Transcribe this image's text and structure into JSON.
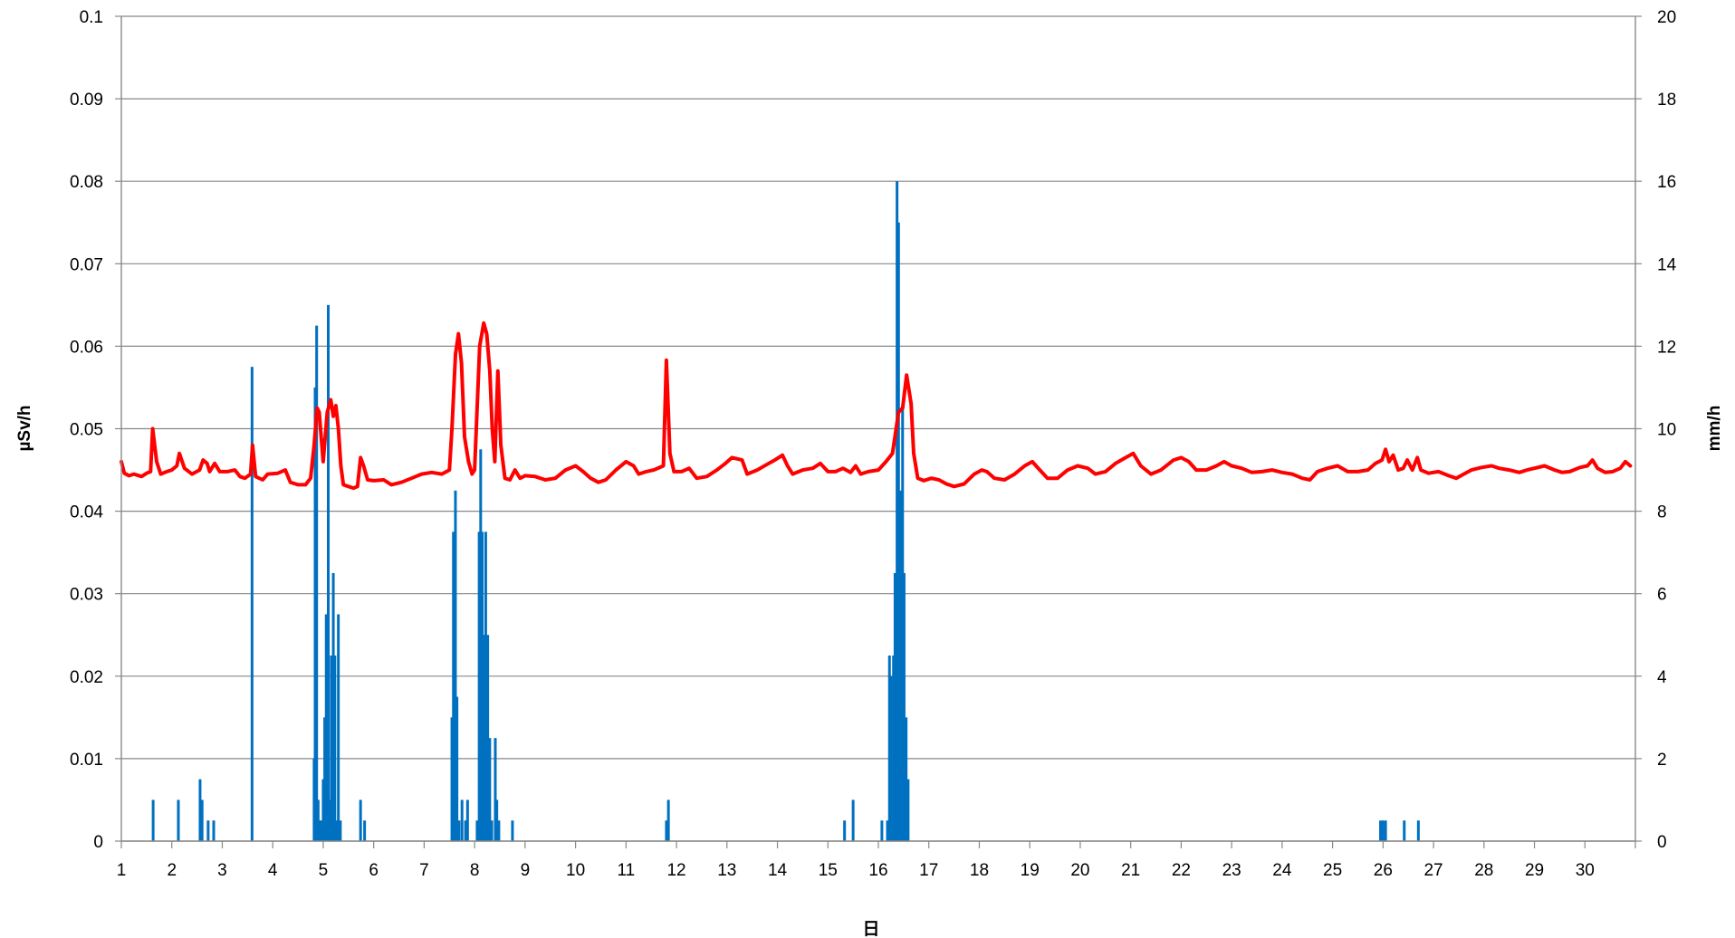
{
  "chart_data": {
    "type": "bar+line",
    "title": "",
    "xlabel": "日",
    "ylabel_left": "µSv/h",
    "ylabel_right": "mm/h",
    "xlim": [
      1,
      31
    ],
    "ylim_left": [
      0,
      0.1
    ],
    "ylim_right": [
      0,
      20
    ],
    "x_ticks": [
      "1",
      "2",
      "3",
      "4",
      "5",
      "6",
      "7",
      "8",
      "9",
      "10",
      "11",
      "12",
      "13",
      "14",
      "15",
      "16",
      "17",
      "18",
      "19",
      "20",
      "21",
      "22",
      "23",
      "24",
      "25",
      "26",
      "27",
      "28",
      "29",
      "30"
    ],
    "y_left_ticks": [
      "0",
      "0.01",
      "0.02",
      "0.03",
      "0.04",
      "0.05",
      "0.06",
      "0.07",
      "0.08",
      "0.09",
      "0.1"
    ],
    "y_right_ticks": [
      "0",
      "2",
      "4",
      "6",
      "8",
      "10",
      "12",
      "14",
      "16",
      "18",
      "20"
    ],
    "grid": "horizontal",
    "legend": "none",
    "colors": {
      "dose_line": "#ff0000",
      "rain_bars": "#0070c0"
    },
    "series": [
      {
        "axis": "left",
        "type": "line",
        "points": [
          [
            1.0,
            0.046
          ],
          [
            1.06,
            0.0446
          ],
          [
            1.15,
            0.0443
          ],
          [
            1.25,
            0.0445
          ],
          [
            1.4,
            0.0442
          ],
          [
            1.5,
            0.0446
          ],
          [
            1.58,
            0.0448
          ],
          [
            1.62,
            0.05
          ],
          [
            1.7,
            0.046
          ],
          [
            1.78,
            0.0445
          ],
          [
            1.9,
            0.0448
          ],
          [
            2.0,
            0.045
          ],
          [
            2.1,
            0.0455
          ],
          [
            2.15,
            0.047
          ],
          [
            2.25,
            0.0452
          ],
          [
            2.4,
            0.0445
          ],
          [
            2.55,
            0.045
          ],
          [
            2.62,
            0.0462
          ],
          [
            2.7,
            0.0458
          ],
          [
            2.75,
            0.0448
          ],
          [
            2.85,
            0.0458
          ],
          [
            2.95,
            0.0448
          ],
          [
            3.1,
            0.0448
          ],
          [
            3.25,
            0.045
          ],
          [
            3.35,
            0.0442
          ],
          [
            3.45,
            0.044
          ],
          [
            3.56,
            0.0445
          ],
          [
            3.6,
            0.048
          ],
          [
            3.66,
            0.0442
          ],
          [
            3.8,
            0.0438
          ],
          [
            3.9,
            0.0445
          ],
          [
            4.1,
            0.0446
          ],
          [
            4.25,
            0.045
          ],
          [
            4.35,
            0.0435
          ],
          [
            4.5,
            0.0432
          ],
          [
            4.65,
            0.0432
          ],
          [
            4.75,
            0.044
          ],
          [
            4.82,
            0.048
          ],
          [
            4.88,
            0.0525
          ],
          [
            4.92,
            0.052
          ],
          [
            5.0,
            0.046
          ],
          [
            5.08,
            0.052
          ],
          [
            5.15,
            0.0535
          ],
          [
            5.2,
            0.0515
          ],
          [
            5.25,
            0.0528
          ],
          [
            5.3,
            0.05
          ],
          [
            5.35,
            0.0455
          ],
          [
            5.4,
            0.0432
          ],
          [
            5.5,
            0.043
          ],
          [
            5.6,
            0.0428
          ],
          [
            5.68,
            0.043
          ],
          [
            5.74,
            0.0465
          ],
          [
            5.8,
            0.0455
          ],
          [
            5.88,
            0.0438
          ],
          [
            6.0,
            0.0437
          ],
          [
            6.2,
            0.0438
          ],
          [
            6.35,
            0.0432
          ],
          [
            6.55,
            0.0435
          ],
          [
            6.75,
            0.044
          ],
          [
            6.95,
            0.0445
          ],
          [
            7.15,
            0.0447
          ],
          [
            7.35,
            0.0445
          ],
          [
            7.5,
            0.045
          ],
          [
            7.55,
            0.05
          ],
          [
            7.62,
            0.059
          ],
          [
            7.68,
            0.0615
          ],
          [
            7.74,
            0.058
          ],
          [
            7.8,
            0.049
          ],
          [
            7.88,
            0.046
          ],
          [
            7.95,
            0.0445
          ],
          [
            8.0,
            0.045
          ],
          [
            8.1,
            0.06
          ],
          [
            8.18,
            0.0628
          ],
          [
            8.24,
            0.0615
          ],
          [
            8.3,
            0.057
          ],
          [
            8.35,
            0.05
          ],
          [
            8.4,
            0.046
          ],
          [
            8.46,
            0.057
          ],
          [
            8.52,
            0.048
          ],
          [
            8.6,
            0.044
          ],
          [
            8.7,
            0.0438
          ],
          [
            8.8,
            0.045
          ],
          [
            8.9,
            0.044
          ],
          [
            9.0,
            0.0443
          ],
          [
            9.2,
            0.0442
          ],
          [
            9.4,
            0.0438
          ],
          [
            9.6,
            0.044
          ],
          [
            9.8,
            0.045
          ],
          [
            10.0,
            0.0455
          ],
          [
            10.15,
            0.0448
          ],
          [
            10.3,
            0.044
          ],
          [
            10.45,
            0.0435
          ],
          [
            10.6,
            0.0438
          ],
          [
            10.8,
            0.045
          ],
          [
            11.0,
            0.046
          ],
          [
            11.15,
            0.0455
          ],
          [
            11.25,
            0.0445
          ],
          [
            11.4,
            0.0448
          ],
          [
            11.55,
            0.045
          ],
          [
            11.74,
            0.0455
          ],
          [
            11.8,
            0.0583
          ],
          [
            11.87,
            0.047
          ],
          [
            11.95,
            0.0448
          ],
          [
            12.1,
            0.0448
          ],
          [
            12.25,
            0.0452
          ],
          [
            12.4,
            0.044
          ],
          [
            12.6,
            0.0442
          ],
          [
            12.8,
            0.045
          ],
          [
            12.95,
            0.0457
          ],
          [
            13.1,
            0.0465
          ],
          [
            13.3,
            0.0462
          ],
          [
            13.4,
            0.0445
          ],
          [
            13.6,
            0.045
          ],
          [
            13.8,
            0.0457
          ],
          [
            13.95,
            0.0462
          ],
          [
            14.1,
            0.0468
          ],
          [
            14.2,
            0.0455
          ],
          [
            14.3,
            0.0445
          ],
          [
            14.5,
            0.045
          ],
          [
            14.7,
            0.0452
          ],
          [
            14.85,
            0.0458
          ],
          [
            15.0,
            0.0448
          ],
          [
            15.15,
            0.0448
          ],
          [
            15.3,
            0.0452
          ],
          [
            15.45,
            0.0447
          ],
          [
            15.55,
            0.0455
          ],
          [
            15.65,
            0.0445
          ],
          [
            15.8,
            0.0448
          ],
          [
            16.0,
            0.045
          ],
          [
            16.15,
            0.046
          ],
          [
            16.28,
            0.047
          ],
          [
            16.4,
            0.052
          ],
          [
            16.48,
            0.0525
          ],
          [
            16.56,
            0.0565
          ],
          [
            16.65,
            0.053
          ],
          [
            16.7,
            0.047
          ],
          [
            16.78,
            0.044
          ],
          [
            16.9,
            0.0437
          ],
          [
            17.05,
            0.044
          ],
          [
            17.2,
            0.0438
          ],
          [
            17.35,
            0.0433
          ],
          [
            17.5,
            0.043
          ],
          [
            17.7,
            0.0433
          ],
          [
            17.9,
            0.0445
          ],
          [
            18.05,
            0.045
          ],
          [
            18.15,
            0.0448
          ],
          [
            18.3,
            0.044
          ],
          [
            18.5,
            0.0438
          ],
          [
            18.7,
            0.0445
          ],
          [
            18.9,
            0.0455
          ],
          [
            19.05,
            0.046
          ],
          [
            19.2,
            0.045
          ],
          [
            19.35,
            0.044
          ],
          [
            19.55,
            0.044
          ],
          [
            19.75,
            0.045
          ],
          [
            19.95,
            0.0455
          ],
          [
            20.15,
            0.0452
          ],
          [
            20.3,
            0.0445
          ],
          [
            20.5,
            0.0448
          ],
          [
            20.7,
            0.0458
          ],
          [
            20.9,
            0.0465
          ],
          [
            21.05,
            0.047
          ],
          [
            21.2,
            0.0455
          ],
          [
            21.4,
            0.0445
          ],
          [
            21.6,
            0.045
          ],
          [
            21.85,
            0.0462
          ],
          [
            22.0,
            0.0465
          ],
          [
            22.15,
            0.046
          ],
          [
            22.3,
            0.045
          ],
          [
            22.5,
            0.045
          ],
          [
            22.7,
            0.0455
          ],
          [
            22.85,
            0.046
          ],
          [
            23.0,
            0.0455
          ],
          [
            23.2,
            0.0452
          ],
          [
            23.4,
            0.0447
          ],
          [
            23.6,
            0.0448
          ],
          [
            23.8,
            0.045
          ],
          [
            24.0,
            0.0447
          ],
          [
            24.2,
            0.0445
          ],
          [
            24.4,
            0.044
          ],
          [
            24.55,
            0.0438
          ],
          [
            24.7,
            0.0448
          ],
          [
            24.9,
            0.0452
          ],
          [
            25.1,
            0.0455
          ],
          [
            25.3,
            0.0448
          ],
          [
            25.5,
            0.0448
          ],
          [
            25.7,
            0.045
          ],
          [
            25.85,
            0.0458
          ],
          [
            25.98,
            0.0462
          ],
          [
            26.05,
            0.0475
          ],
          [
            26.12,
            0.046
          ],
          [
            26.2,
            0.0468
          ],
          [
            26.3,
            0.045
          ],
          [
            26.4,
            0.0452
          ],
          [
            26.48,
            0.0462
          ],
          [
            26.58,
            0.045
          ],
          [
            26.68,
            0.0465
          ],
          [
            26.75,
            0.045
          ],
          [
            26.9,
            0.0446
          ],
          [
            27.1,
            0.0448
          ],
          [
            27.3,
            0.0443
          ],
          [
            27.45,
            0.044
          ],
          [
            27.6,
            0.0445
          ],
          [
            27.75,
            0.045
          ],
          [
            27.95,
            0.0453
          ],
          [
            28.15,
            0.0455
          ],
          [
            28.3,
            0.0452
          ],
          [
            28.5,
            0.045
          ],
          [
            28.7,
            0.0447
          ],
          [
            28.85,
            0.045
          ],
          [
            29.0,
            0.0452
          ],
          [
            29.2,
            0.0455
          ],
          [
            29.4,
            0.045
          ],
          [
            29.55,
            0.0447
          ],
          [
            29.7,
            0.0448
          ],
          [
            29.9,
            0.0453
          ],
          [
            30.05,
            0.0455
          ],
          [
            30.15,
            0.0462
          ],
          [
            30.25,
            0.0452
          ],
          [
            30.4,
            0.0447
          ],
          [
            30.55,
            0.0448
          ],
          [
            30.7,
            0.0452
          ],
          [
            30.8,
            0.046
          ],
          [
            30.9,
            0.0455
          ]
        ]
      },
      {
        "axis": "right",
        "type": "bar",
        "points": [
          [
            1.63,
            1.0
          ],
          [
            2.13,
            1.0
          ],
          [
            2.56,
            1.5
          ],
          [
            2.6,
            1.0
          ],
          [
            2.72,
            0.5
          ],
          [
            2.83,
            0.5
          ],
          [
            3.59,
            11.5
          ],
          [
            4.82,
            2.0
          ],
          [
            4.84,
            11.0
          ],
          [
            4.87,
            12.5
          ],
          [
            4.9,
            1.0
          ],
          [
            4.93,
            0.5
          ],
          [
            4.96,
            0.5
          ],
          [
            5.0,
            1.5
          ],
          [
            5.03,
            3.0
          ],
          [
            5.06,
            5.5
          ],
          [
            5.1,
            13.0
          ],
          [
            5.13,
            1.0
          ],
          [
            5.16,
            4.5
          ],
          [
            5.2,
            6.5
          ],
          [
            5.23,
            4.5
          ],
          [
            5.26,
            0.5
          ],
          [
            5.3,
            5.5
          ],
          [
            5.34,
            0.5
          ],
          [
            5.74,
            1.0
          ],
          [
            5.82,
            0.5
          ],
          [
            7.55,
            3.0
          ],
          [
            7.58,
            7.5
          ],
          [
            7.62,
            8.5
          ],
          [
            7.65,
            3.5
          ],
          [
            7.69,
            0.5
          ],
          [
            7.75,
            1.0
          ],
          [
            7.82,
            0.5
          ],
          [
            7.86,
            1.0
          ],
          [
            8.05,
            0.5
          ],
          [
            8.09,
            7.5
          ],
          [
            8.12,
            9.5
          ],
          [
            8.15,
            7.5
          ],
          [
            8.19,
            5.0
          ],
          [
            8.22,
            7.5
          ],
          [
            8.26,
            5.0
          ],
          [
            8.3,
            2.5
          ],
          [
            8.34,
            0.5
          ],
          [
            8.41,
            2.5
          ],
          [
            8.44,
            1.0
          ],
          [
            8.48,
            0.5
          ],
          [
            8.75,
            0.5
          ],
          [
            11.8,
            0.5
          ],
          [
            11.84,
            1.0
          ],
          [
            15.33,
            0.5
          ],
          [
            15.5,
            1.0
          ],
          [
            16.07,
            0.5
          ],
          [
            16.18,
            0.5
          ],
          [
            16.22,
            4.5
          ],
          [
            16.25,
            4.0
          ],
          [
            16.3,
            4.5
          ],
          [
            16.33,
            6.5
          ],
          [
            16.37,
            16.0
          ],
          [
            16.4,
            15.0
          ],
          [
            16.44,
            8.5
          ],
          [
            16.48,
            10.5
          ],
          [
            16.51,
            6.5
          ],
          [
            16.55,
            3.0
          ],
          [
            16.59,
            1.5
          ],
          [
            25.95,
            0.5
          ],
          [
            26.0,
            0.5
          ],
          [
            26.05,
            0.5
          ],
          [
            26.42,
            0.5
          ],
          [
            26.7,
            0.5
          ]
        ]
      }
    ]
  }
}
